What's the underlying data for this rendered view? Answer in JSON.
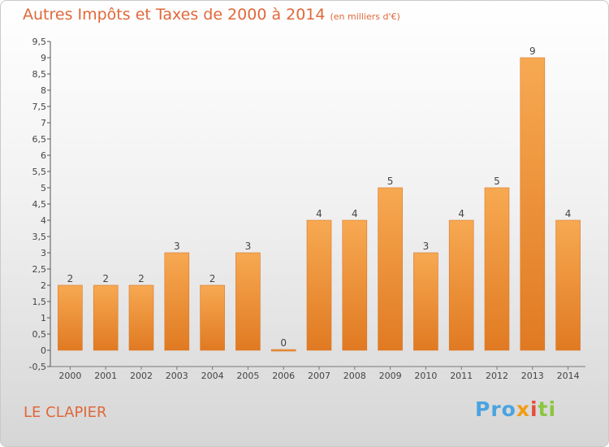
{
  "title": "Autres Impôts et Taxes de 2000 à 2014",
  "title_unit": "(en milliers d'€)",
  "location": "LE CLAPIER",
  "logo": {
    "p1": "Pro",
    "p2": "x",
    "p3": "i",
    "p4": "ti"
  },
  "colors": {
    "bar_top": "#f7a952",
    "bar_bottom": "#e07a22",
    "title": "#e0683a"
  },
  "chart_data": {
    "type": "bar",
    "title": "Autres Impôts et Taxes de 2000 à 2014",
    "xlabel": "",
    "ylabel": "",
    "categories": [
      "2000",
      "2001",
      "2002",
      "2003",
      "2004",
      "2005",
      "2006",
      "2007",
      "2008",
      "2009",
      "2010",
      "2011",
      "2012",
      "2013",
      "2014"
    ],
    "values": [
      2,
      2,
      2,
      3,
      2,
      3,
      0,
      4,
      4,
      5,
      3,
      4,
      5,
      9,
      4
    ],
    "ylim": [
      -0.5,
      9.5
    ],
    "yticks": [
      "-0,5",
      "0",
      "0,5",
      "1",
      "1,5",
      "2",
      "2,5",
      "3",
      "3,5",
      "4",
      "4,5",
      "5",
      "5,5",
      "6",
      "6,5",
      "7",
      "7,5",
      "8",
      "8,5",
      "9",
      "9,5"
    ],
    "grid": false,
    "legend": "none"
  }
}
